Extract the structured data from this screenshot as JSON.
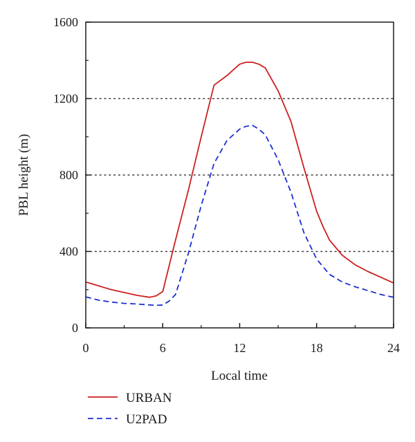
{
  "chart_data": {
    "type": "line",
    "xlabel": "Local time",
    "ylabel": "PBL height (m)",
    "xlim": [
      0,
      24
    ],
    "ylim": [
      0,
      1600
    ],
    "xticks": [
      0,
      6,
      12,
      18,
      24
    ],
    "yticks": [
      0,
      400,
      800,
      1200,
      1600
    ],
    "grid": "horizontal dotted at 400, 800, 1200",
    "legend_position": "bottom-left, below plot",
    "series": [
      {
        "name": "URBAN",
        "color": "#cc1f1f",
        "dash": "solid",
        "x": [
          0,
          1,
          2,
          3,
          4,
          5,
          5.5,
          6,
          7,
          8,
          9,
          10,
          11,
          11.5,
          12,
          12.5,
          13,
          13.5,
          14,
          15,
          16,
          17,
          18,
          18.5,
          19,
          20,
          21,
          22,
          23,
          24
        ],
        "y": [
          240,
          220,
          200,
          185,
          170,
          160,
          168,
          190,
          460,
          720,
          1000,
          1270,
          1320,
          1350,
          1380,
          1390,
          1390,
          1380,
          1360,
          1240,
          1080,
          840,
          610,
          530,
          460,
          380,
          330,
          295,
          265,
          235
        ]
      },
      {
        "name": "U2PAD",
        "color": "#1a2ed1",
        "dash": "dashed",
        "x": [
          0,
          1,
          2,
          3,
          4,
          5,
          5.5,
          6,
          6.5,
          7,
          8,
          9,
          10,
          11,
          11.5,
          12,
          12.5,
          13,
          13.5,
          14,
          15,
          16,
          17,
          18,
          19,
          20,
          21,
          22,
          23,
          24
        ],
        "y": [
          162,
          145,
          135,
          128,
          125,
          120,
          118,
          120,
          140,
          175,
          390,
          640,
          860,
          980,
          1010,
          1040,
          1055,
          1060,
          1040,
          1010,
          880,
          710,
          500,
          360,
          280,
          240,
          215,
          195,
          175,
          160
        ]
      }
    ]
  }
}
